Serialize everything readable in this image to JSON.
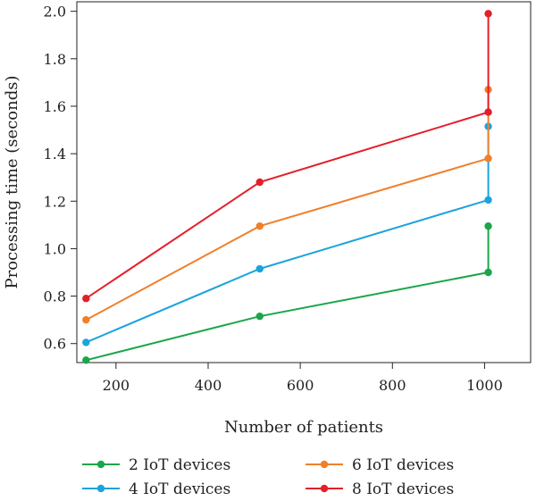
{
  "chart_data": {
    "type": "line",
    "title": "",
    "xlabel": "Number of patients",
    "ylabel": "Processing time (seconds)",
    "xlim": [
      115,
      1100
    ],
    "ylim": [
      0.52,
      2.04
    ],
    "x_ticks": [
      200,
      400,
      600,
      800,
      1000
    ],
    "x_tick_labels": [
      "200",
      "400",
      "600",
      "800",
      "1000"
    ],
    "y_ticks": [
      0.6,
      0.8,
      1.0,
      1.2,
      1.4,
      1.6,
      1.8,
      2.0
    ],
    "y_tick_labels": [
      "0.6",
      "0.8",
      "1.0",
      "1.2",
      "1.4",
      "1.6",
      "1.8",
      "2.0"
    ],
    "grid": false,
    "legend_position": "bottom",
    "series": [
      {
        "name": "2 IoT devices",
        "color": "#1aa64a",
        "points": [
          {
            "x": 135,
            "y": 0.53
          },
          {
            "x": 512,
            "y": 0.715
          },
          {
            "x": 1008,
            "y": 0.9
          },
          {
            "x": 1008,
            "y": 1.095
          }
        ]
      },
      {
        "name": "4 IoT devices",
        "color": "#1ba3dd",
        "points": [
          {
            "x": 135,
            "y": 0.605
          },
          {
            "x": 512,
            "y": 0.915
          },
          {
            "x": 1008,
            "y": 1.205
          },
          {
            "x": 1008,
            "y": 1.515
          }
        ]
      },
      {
        "name": "6 IoT devices",
        "color": "#f07f2b",
        "points": [
          {
            "x": 135,
            "y": 0.7
          },
          {
            "x": 512,
            "y": 1.095
          },
          {
            "x": 1008,
            "y": 1.38
          },
          {
            "x": 1008,
            "y": 1.67
          }
        ]
      },
      {
        "name": "8 IoT devices",
        "color": "#e3202a",
        "points": [
          {
            "x": 135,
            "y": 0.79
          },
          {
            "x": 512,
            "y": 1.28
          },
          {
            "x": 1008,
            "y": 1.575
          },
          {
            "x": 1008,
            "y": 1.99
          }
        ]
      }
    ]
  }
}
